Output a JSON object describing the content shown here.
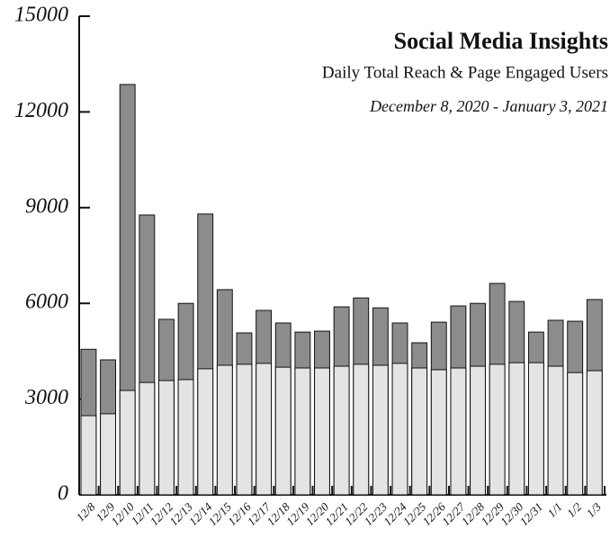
{
  "chart_data": {
    "type": "bar",
    "overlap": true,
    "title": "Social Media Insights",
    "subtitle": "Daily Total Reach & Page Engaged Users",
    "date_range": "December 8, 2020 - January 3, 2021",
    "categories": [
      "12/8",
      "12/9",
      "12/10",
      "12/11",
      "12/12",
      "12/13",
      "12/14",
      "12/15",
      "12/16",
      "12/17",
      "12/18",
      "12/19",
      "12/20",
      "12/21",
      "12/22",
      "12/23",
      "12/24",
      "12/25",
      "12/26",
      "12/27",
      "12/28",
      "12/29",
      "12/30",
      "12/31",
      "1/1",
      "1/2",
      "1/3"
    ],
    "series": [
      {
        "color": "#8c8c8e",
        "values": [
          4560,
          4230,
          12860,
          8770,
          5500,
          6000,
          8800,
          6430,
          5075,
          5780,
          5385,
          5100,
          5130,
          5890,
          6170,
          5860,
          5385,
          4765,
          5410,
          5920,
          6000,
          6625,
          6060,
          5100,
          5470,
          5440,
          6120
        ]
      },
      {
        "color": "#e4e4e4",
        "values": [
          2480,
          2540,
          3270,
          3520,
          3580,
          3610,
          3950,
          4060,
          4090,
          4120,
          4000,
          3975,
          3975,
          4030,
          4090,
          4060,
          4120,
          3975,
          3920,
          3975,
          4030,
          4090,
          4140,
          4140,
          4030,
          3830,
          3890
        ]
      }
    ],
    "ylim": [
      0,
      15000
    ],
    "yticks": [
      0,
      3000,
      6000,
      9000,
      12000,
      15000
    ]
  }
}
